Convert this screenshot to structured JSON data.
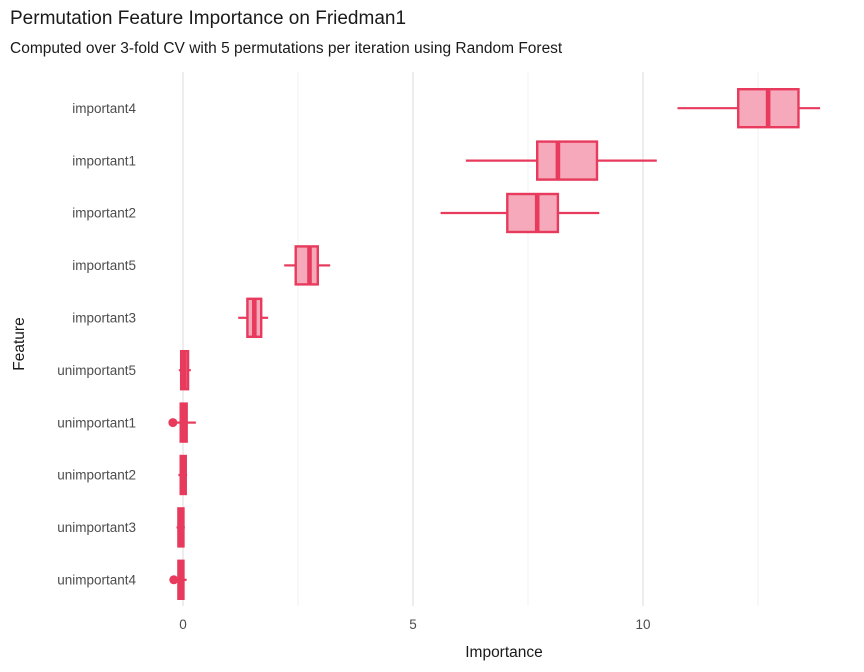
{
  "chart_data": {
    "type": "boxplot",
    "orientation": "horizontal",
    "title": "Permutation Feature Importance on Friedman1",
    "subtitle": "Computed over 3-fold CV with 5 permutations per iteration using Random Forest",
    "xlabel": "Importance",
    "ylabel": "Feature",
    "xlim": [
      -0.75,
      14.7
    ],
    "x_major_ticks": [
      0,
      5,
      10
    ],
    "x_minor_gridlines": [
      2.5,
      7.5,
      12.5
    ],
    "grid": "vertical-only",
    "legend": "none",
    "features": [
      {
        "name": "important4",
        "whislo": 10.75,
        "q1": 12.07,
        "med": 12.72,
        "q3": 13.38,
        "whishi": 13.85,
        "outliers": []
      },
      {
        "name": "important1",
        "whislo": 6.15,
        "q1": 7.7,
        "med": 8.15,
        "q3": 9.0,
        "whishi": 10.3,
        "outliers": []
      },
      {
        "name": "important2",
        "whislo": 5.6,
        "q1": 7.05,
        "med": 7.7,
        "q3": 8.15,
        "whishi": 9.05,
        "outliers": []
      },
      {
        "name": "important5",
        "whislo": 2.2,
        "q1": 2.45,
        "med": 2.75,
        "q3": 2.93,
        "whishi": 3.2,
        "outliers": []
      },
      {
        "name": "important3",
        "whislo": 1.2,
        "q1": 1.4,
        "med": 1.55,
        "q3": 1.7,
        "whishi": 1.85,
        "outliers": []
      },
      {
        "name": "unimportant5",
        "whislo": -0.09,
        "q1": -0.04,
        "med": 0.03,
        "q3": 0.11,
        "whishi": 0.17,
        "outliers": []
      },
      {
        "name": "unimportant1",
        "whislo": -0.21,
        "q1": -0.05,
        "med": 0.02,
        "q3": 0.08,
        "whishi": 0.28,
        "outliers": [
          -0.22
        ]
      },
      {
        "name": "unimportant2",
        "whislo": -0.1,
        "q1": -0.05,
        "med": 0.0,
        "q3": 0.06,
        "whishi": 0.09,
        "outliers": []
      },
      {
        "name": "unimportant3",
        "whislo": -0.14,
        "q1": -0.1,
        "med": -0.04,
        "q3": 0.01,
        "whishi": 0.04,
        "outliers": []
      },
      {
        "name": "unimportant4",
        "whislo": -0.13,
        "q1": -0.1,
        "med": -0.04,
        "q3": 0.01,
        "whishi": 0.08,
        "outliers": [
          -0.2
        ]
      }
    ],
    "colors": {
      "box_stroke": "#e73a5d",
      "box_fill": "#f5a9ba",
      "gridline_major": "#e3e3e3",
      "gridline_minor": "#f0f0f0",
      "tick_label": "#4d4d4d",
      "axis_title": "#1a1a1a",
      "background": "#ffffff"
    }
  }
}
